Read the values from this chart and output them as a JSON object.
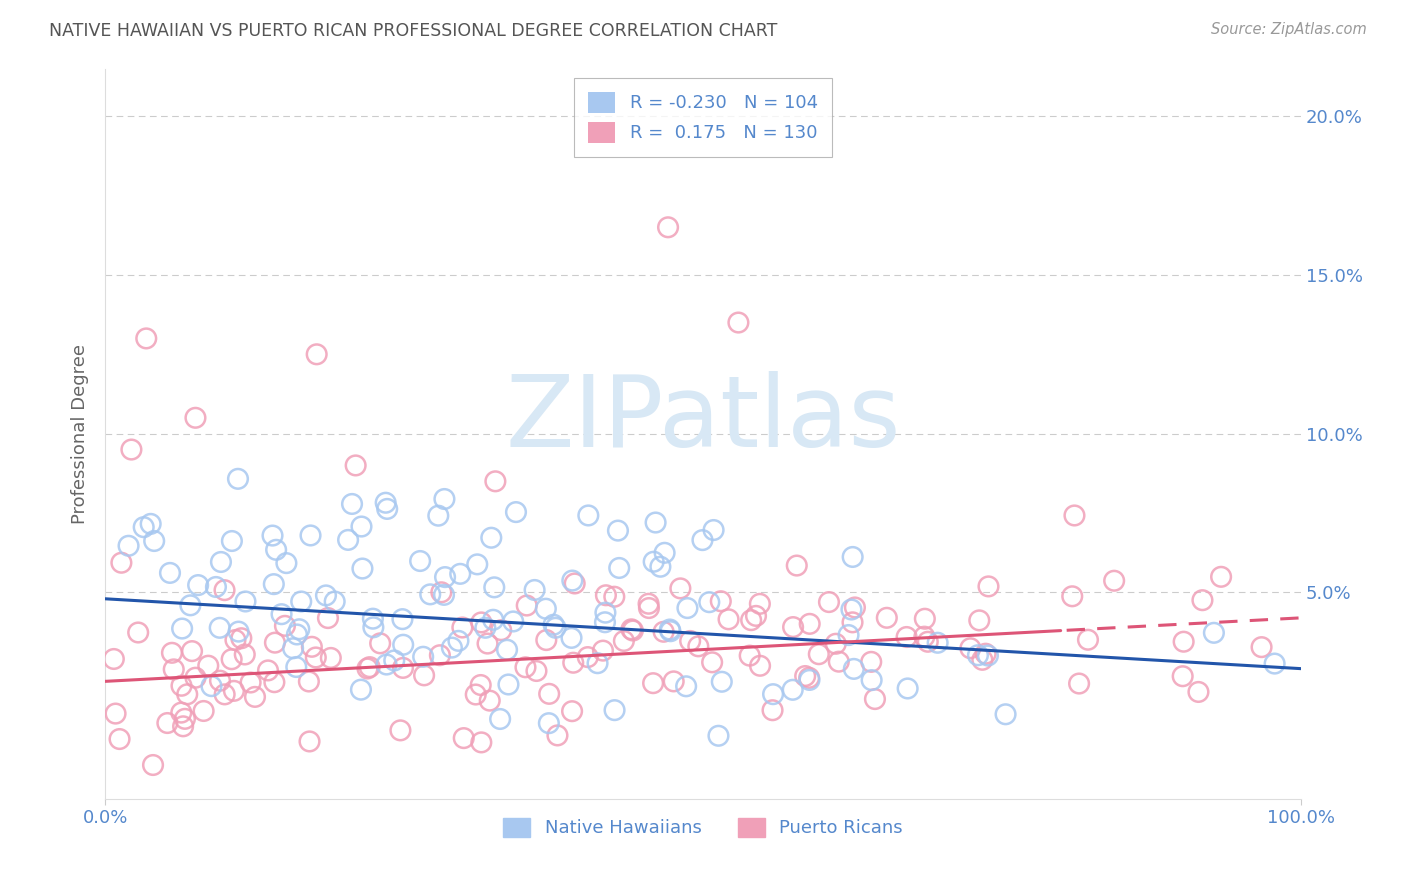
{
  "title": "NATIVE HAWAIIAN VS PUERTO RICAN PROFESSIONAL DEGREE CORRELATION CHART",
  "source": "Source: ZipAtlas.com",
  "ylabel": "Professional Degree",
  "yticks": [
    0.0,
    0.05,
    0.1,
    0.15,
    0.2
  ],
  "xlim": [
    0.0,
    1.0
  ],
  "ylim": [
    -0.015,
    0.215
  ],
  "blue_color": "#A8C8F0",
  "pink_color": "#F0A0B8",
  "blue_line_color": "#2255AA",
  "pink_line_color": "#DD5577",
  "title_color": "#555555",
  "axis_label_color": "#5588CC",
  "watermark_color": "#D8E8F5",
  "watermark_text": "ZIPatlas",
  "blue_r": -0.23,
  "pink_r": 0.175,
  "blue_n": 104,
  "pink_n": 130,
  "blue_intercept": 0.048,
  "blue_slope": -0.022,
  "pink_intercept": 0.022,
  "pink_slope": 0.02,
  "background_color": "#FFFFFF",
  "seed": 42
}
